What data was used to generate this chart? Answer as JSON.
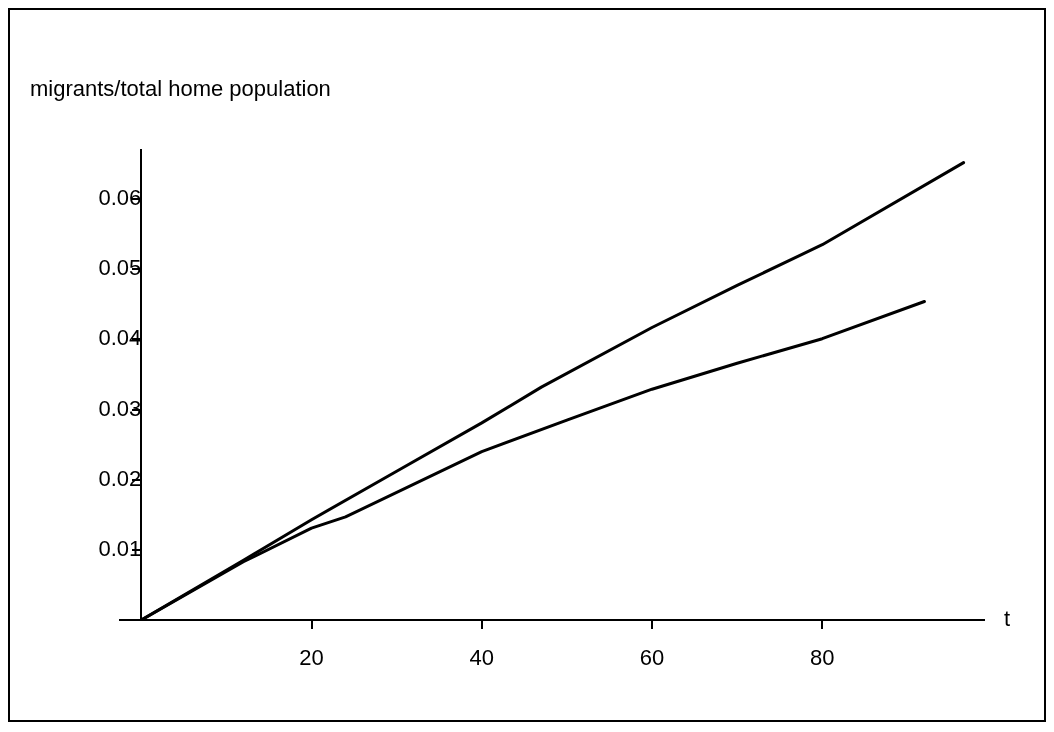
{
  "chart_data": {
    "type": "line",
    "ylabel": "migrants/total home population",
    "xlabel": "t",
    "xlim": [
      -2.5,
      99
    ],
    "ylim": [
      0,
      0.067
    ],
    "xticks": [
      20,
      40,
      60,
      80
    ],
    "yticks": [
      0.01,
      0.02,
      0.03,
      0.04,
      0.05,
      0.06
    ],
    "grid": false,
    "legend": false,
    "marker": "none",
    "line_style": "solid",
    "series": [
      {
        "color": "#000000",
        "x": [
          0,
          12,
          20,
          30,
          40,
          47,
          60,
          70,
          80,
          96.6
        ],
        "values": [
          0,
          0.0085,
          0.0143,
          0.0212,
          0.0281,
          0.0332,
          0.0417,
          0.0477,
          0.0535,
          0.0652
        ]
      },
      {
        "color": "#000000",
        "x": [
          0,
          12,
          20,
          24,
          40,
          50,
          60,
          70,
          80,
          92
        ],
        "values": [
          0,
          0.0083,
          0.0131,
          0.0147,
          0.024,
          0.0285,
          0.0329,
          0.0366,
          0.0401,
          0.0454
        ]
      }
    ]
  }
}
